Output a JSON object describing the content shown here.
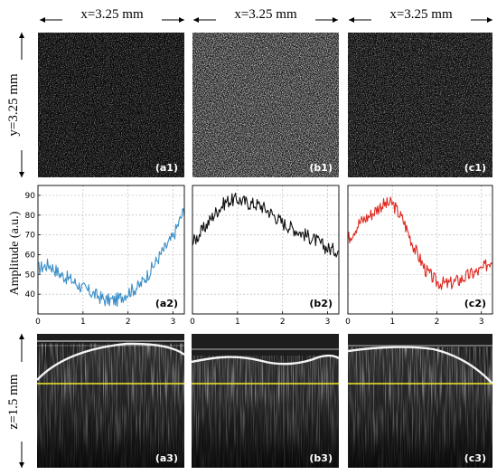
{
  "header": {
    "col_dims": [
      "x=3.25 mm",
      "x=3.25 mm",
      "x=3.25 mm"
    ],
    "row_y_label": "y=3.25 mm",
    "row_z_label": "z=1.5 mm"
  },
  "labels": {
    "row1": [
      "(a1)",
      "(b1)",
      "(c1)"
    ],
    "row2": [
      "(a2)",
      "(b2)",
      "(c2)"
    ],
    "row3": [
      "(a3)",
      "(b3)",
      "(c3)"
    ]
  },
  "colors": {
    "a_series": "#3a8fc8",
    "b_series": "#111111",
    "c_series": "#dd2a20",
    "horizon_line": "#f2ea2a"
  },
  "chart_data": [
    {
      "type": "line",
      "panel": "(a2)",
      "ylabel": "Amplitude (a.u.)",
      "xlim": [
        0,
        3.25
      ],
      "ylim": [
        30,
        95
      ],
      "xticks": [
        0,
        1,
        2,
        3
      ],
      "yticks": [
        40,
        50,
        60,
        70,
        80,
        90
      ],
      "grid": true,
      "x": [
        0,
        0.25,
        0.5,
        0.75,
        1.0,
        1.25,
        1.5,
        1.75,
        2.0,
        2.25,
        2.5,
        2.75,
        3.0,
        3.25
      ],
      "y": [
        53,
        55,
        50,
        47,
        43,
        40,
        37,
        37,
        41,
        44,
        52,
        61,
        69,
        83
      ]
    },
    {
      "type": "line",
      "panel": "(b2)",
      "xlim": [
        0,
        3.25
      ],
      "ylim": [
        30,
        95
      ],
      "xticks": [
        0,
        1,
        2,
        3
      ],
      "grid": true,
      "x": [
        0,
        0.25,
        0.5,
        0.75,
        1.0,
        1.25,
        1.5,
        1.75,
        2.0,
        2.25,
        2.5,
        2.75,
        3.0,
        3.25
      ],
      "y": [
        66,
        73,
        81,
        87,
        88,
        86,
        85,
        81,
        76,
        73,
        70,
        67,
        63,
        62
      ]
    },
    {
      "type": "line",
      "panel": "(c2)",
      "xlim": [
        0,
        3.25
      ],
      "ylim": [
        30,
        95
      ],
      "xticks": [
        0,
        1,
        2,
        3
      ],
      "grid": true,
      "x": [
        0,
        0.25,
        0.5,
        0.75,
        1.0,
        1.25,
        1.5,
        1.75,
        2.0,
        2.25,
        2.5,
        2.75,
        3.0,
        3.25
      ],
      "y": [
        68,
        76,
        80,
        85,
        86,
        77,
        63,
        52,
        46,
        45,
        47,
        50,
        52,
        58
      ]
    }
  ]
}
